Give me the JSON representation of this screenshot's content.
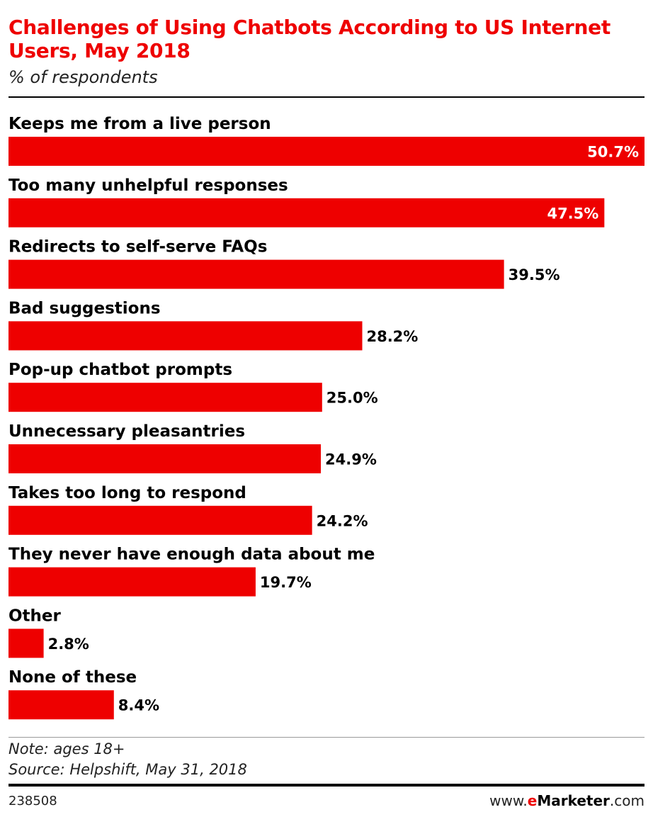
{
  "header": {
    "title": "Challenges of Using Chatbots According to US Internet Users, May 2018",
    "subtitle": "% of respondents"
  },
  "chart_data": {
    "type": "bar",
    "orientation": "horizontal",
    "categories": [
      "Keeps me from a live person",
      "Too many unhelpful responses",
      "Redirects to self-serve FAQs",
      "Bad suggestions",
      "Pop-up chatbot prompts",
      "Unnecessary pleasantries",
      "Takes too long to respond",
      "They never have enough data about me",
      "Other",
      "None of these"
    ],
    "values": [
      50.7,
      47.5,
      39.5,
      28.2,
      25.0,
      24.9,
      24.2,
      19.7,
      2.8,
      8.4
    ],
    "value_labels": [
      "50.7%",
      "47.5%",
      "39.5%",
      "28.2%",
      "25.0%",
      "24.9%",
      "24.2%",
      "19.7%",
      "2.8%",
      "8.4%"
    ],
    "unit": "%",
    "title": "Challenges of Using Chatbots According to US Internet Users, May 2018",
    "subtitle": "% of respondents",
    "bar_color": "#ee0000",
    "grid": false,
    "legend": "none"
  },
  "footer": {
    "note": "Note: ages 18+",
    "source": "Source: Helpshift, May 31, 2018",
    "chart_id": "238508",
    "brand_prefix": "www.",
    "brand_e": "e",
    "brand_name": "Marketer",
    "brand_suffix": ".com"
  }
}
